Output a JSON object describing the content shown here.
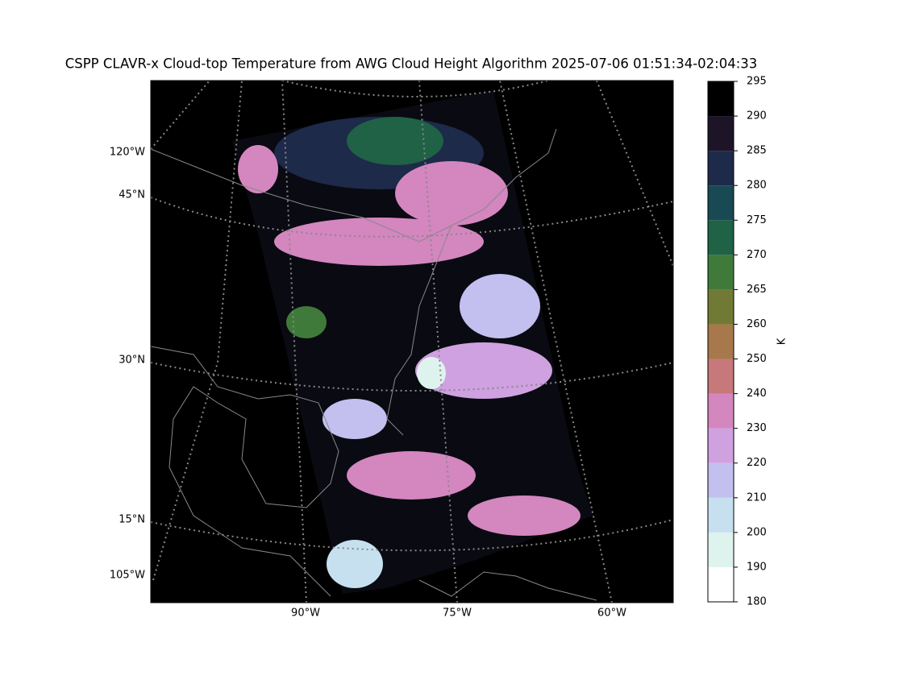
{
  "title": "CSPP CLAVR-x Cloud-top Temperature from AWG Cloud Height Algorithm 2025-07-06 01:51:34-02:04:33",
  "map": {
    "left_labels": [
      "120°W",
      "45°N",
      "30°N",
      "15°N",
      "105°W"
    ],
    "bottom_labels": [
      "90°W",
      "75°W",
      "60°W"
    ]
  },
  "colorbar": {
    "label": "K",
    "range": [
      180,
      295
    ],
    "ticks": [
      180,
      190,
      200,
      210,
      220,
      230,
      240,
      250,
      260,
      265,
      270,
      275,
      280,
      285,
      290,
      295
    ],
    "colors": [
      "#ffffff",
      "#dff3ee",
      "#c6e0f0",
      "#c3c0f0",
      "#cfa1e0",
      "#d486bf",
      "#c6787a",
      "#a7784c",
      "#707a35",
      "#3f7a3a",
      "#1f6245",
      "#194953",
      "#1d2a4a",
      "#1e1428",
      "#000000"
    ]
  }
}
